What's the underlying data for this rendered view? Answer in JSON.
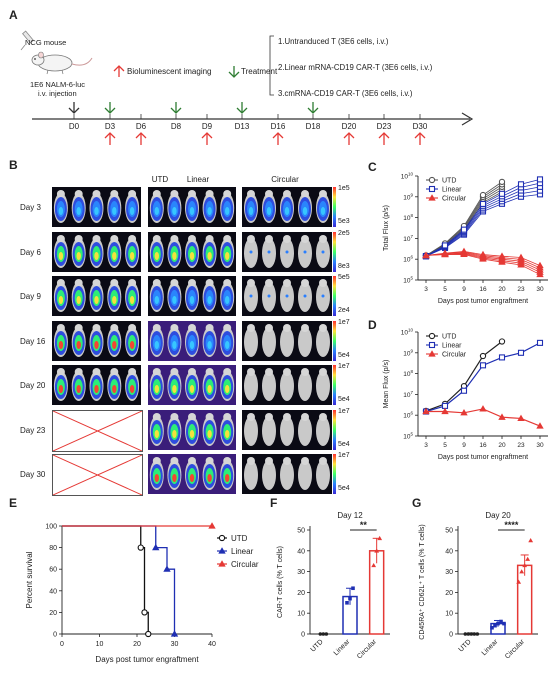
{
  "panel_labels": {
    "A": "A",
    "B": "B",
    "C": "C",
    "D": "D",
    "E": "E",
    "F": "F",
    "G": "G"
  },
  "timeline": {
    "mouse_label": "NCG mouse",
    "injection_label_1": "1E6 NALM-6-luc",
    "injection_label_2": "i.v. injection",
    "imaging_label": "Bioluminescent imaging",
    "treatment_label": "Treatment",
    "groups": [
      "1.Untranduced T (3E6 cells, i.v.)",
      "2.Linear mRNA-CD19 CAR-T (3E6 cells, i.v.)",
      "3.cmRNA-CD19 CAR-T (3E6 cells, i.v.)"
    ],
    "days": [
      "D0",
      "D3",
      "D6",
      "D8",
      "D9",
      "D13",
      "D16",
      "D18",
      "D20",
      "D23",
      "D30"
    ],
    "treatment_days": [
      "D3",
      "D8",
      "D13",
      "D18"
    ],
    "imaging_days": [
      "D3",
      "D6",
      "D9",
      "D16",
      "D20",
      "D23",
      "D30"
    ],
    "colors": {
      "treatment": "#2e7d32",
      "imaging": "#e53935",
      "injection": "#333333"
    }
  },
  "imaging": {
    "columns": [
      "UTD",
      "Linear",
      "Circular"
    ],
    "rows": [
      {
        "day": "Day 3",
        "max": "1e5",
        "min": "5e3"
      },
      {
        "day": "Day 6",
        "max": "2e5",
        "min": "8e3"
      },
      {
        "day": "Day 9",
        "max": "5e5",
        "min": "2e4"
      },
      {
        "day": "Day 16",
        "max": "1e7",
        "min": "5e4"
      },
      {
        "day": "Day 20",
        "max": "1e7",
        "min": "5e4"
      },
      {
        "day": "Day 23",
        "max": "1e7",
        "min": "5e4"
      },
      {
        "day": "Day 30",
        "max": "1e7",
        "min": "5e4"
      }
    ]
  },
  "chart_data": [
    {
      "id": "C",
      "type": "line",
      "ylabel": "Total Flux (p/s)",
      "xlabel": "Days post tumor engraftment",
      "x": [
        3,
        5,
        9,
        16,
        20,
        23,
        30
      ],
      "yscale": "log",
      "ylim": [
        100000.0,
        10000000000.0
      ],
      "ytick_labels": [
        "10^5",
        "10^6",
        "10^7",
        "10^8",
        "10^9",
        "10^10"
      ],
      "series": [
        {
          "name": "UTD",
          "color": "#555555",
          "marker": "circle",
          "values": [
            1500000.0,
            5000000.0,
            30000000.0,
            800000000.0,
            3000000000.0,
            null,
            null
          ]
        },
        {
          "name": "Linear",
          "color": "#1f2fb3",
          "marker": "square",
          "values": [
            1400000.0,
            4000000.0,
            20000000.0,
            300000000.0,
            800000000.0,
            2000000000.0,
            3000000000.0
          ]
        },
        {
          "name": "Circular",
          "color": "#e53935",
          "marker": "triangle",
          "values": [
            1500000.0,
            1800000.0,
            2000000.0,
            1300000.0,
            1000000.0,
            800000.0,
            300000.0
          ]
        }
      ],
      "legend": "top-left"
    },
    {
      "id": "D",
      "type": "line",
      "ylabel": "Mean Flux (p/s)",
      "xlabel": "Days post tumor engraftment",
      "x": [
        3,
        5,
        9,
        16,
        20,
        23,
        30
      ],
      "yscale": "log",
      "ylim": [
        100000.0,
        10000000000.0
      ],
      "ytick_labels": [
        "10^5",
        "10^6",
        "10^7",
        "10^8",
        "10^9",
        "10^10"
      ],
      "series": [
        {
          "name": "UTD",
          "color": "#222222",
          "marker": "circle",
          "values": [
            1600000.0,
            3500000.0,
            25000000.0,
            700000000.0,
            3500000000.0,
            null,
            null
          ]
        },
        {
          "name": "Linear",
          "color": "#1f2fb3",
          "marker": "square",
          "values": [
            1500000.0,
            2800000.0,
            15000000.0,
            250000000.0,
            600000000.0,
            1000000000.0,
            3000000000.0
          ]
        },
        {
          "name": "Circular",
          "color": "#e53935",
          "marker": "triangle",
          "values": [
            1500000.0,
            1500000.0,
            1300000.0,
            2000000.0,
            800000.0,
            700000.0,
            300000.0
          ]
        }
      ],
      "legend": "top-left"
    },
    {
      "id": "E",
      "type": "line",
      "ylabel": "Percent survival",
      "xlabel": "Days post tumor engraftment",
      "xticks": [
        0,
        10,
        20,
        30,
        40
      ],
      "yticks": [
        0,
        20,
        40,
        60,
        80,
        100
      ],
      "xlim": [
        0,
        40
      ],
      "ylim": [
        0,
        100
      ],
      "series": [
        {
          "name": "UTD",
          "color": "#111111",
          "marker": "circle",
          "steps": [
            [
              0,
              100
            ],
            [
              21,
              100
            ],
            [
              21,
              80
            ],
            [
              22,
              80
            ],
            [
              22,
              20
            ],
            [
              23,
              20
            ],
            [
              23,
              0
            ]
          ]
        },
        {
          "name": "Linear",
          "color": "#1f2fb3",
          "marker": "triangle",
          "steps": [
            [
              0,
              100
            ],
            [
              25,
              100
            ],
            [
              25,
              80
            ],
            [
              28,
              80
            ],
            [
              28,
              60
            ],
            [
              30,
              60
            ],
            [
              30,
              0
            ]
          ]
        },
        {
          "name": "Circular",
          "color": "#e53935",
          "marker": "triangle",
          "steps": [
            [
              0,
              100
            ],
            [
              40,
              100
            ]
          ]
        }
      ],
      "legend": "right"
    },
    {
      "id": "F",
      "type": "bar",
      "title": "Day 12",
      "ylabel": "CAR-T cells (% T cells)",
      "categories": [
        "UTD",
        "Linear",
        "Circular"
      ],
      "values": [
        0,
        18,
        40
      ],
      "errors": [
        0,
        4,
        6
      ],
      "points": [
        [
          0,
          0,
          0
        ],
        [
          15,
          17,
          22
        ],
        [
          33,
          40,
          46
        ]
      ],
      "colors": [
        "#222222",
        "#1f2fb3",
        "#e53935"
      ],
      "yticks": [
        0,
        10,
        20,
        30,
        40,
        50
      ],
      "ylim": [
        0,
        50
      ],
      "significance": "**"
    },
    {
      "id": "G",
      "type": "bar",
      "title": "Day 20",
      "ylabel": "CD45RA⁺ CD62L⁺ T cells (% T cells)",
      "categories": [
        "UTD",
        "Linear",
        "Circular"
      ],
      "values": [
        0,
        5,
        33
      ],
      "errors": [
        0.5,
        1.5,
        5
      ],
      "points": [
        [
          0,
          0,
          0,
          0,
          0
        ],
        [
          3,
          4,
          5,
          6,
          5
        ],
        [
          25,
          30,
          33,
          36,
          45
        ]
      ],
      "colors": [
        "#222222",
        "#1f2fb3",
        "#e53935"
      ],
      "yticks": [
        0,
        10,
        20,
        30,
        40,
        50
      ],
      "ylim": [
        0,
        50
      ],
      "significance": "****"
    }
  ]
}
